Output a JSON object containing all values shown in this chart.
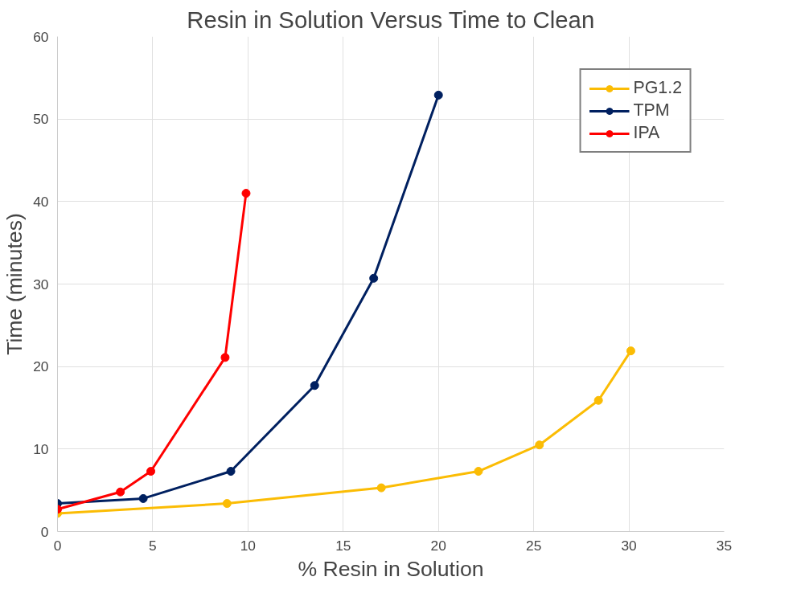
{
  "chart_data": {
    "type": "line",
    "title": "Resin in Solution Versus Time to Clean",
    "xlabel": "% Resin in Solution",
    "ylabel": "Time (minutes)",
    "xlim": [
      0,
      35
    ],
    "xticks": [
      0,
      5,
      10,
      15,
      20,
      25,
      30,
      35
    ],
    "ylim": [
      0,
      60
    ],
    "yticks": [
      0,
      10,
      20,
      30,
      40,
      50,
      60
    ],
    "grid": true,
    "legend": "top right",
    "marker": "circle",
    "line_style": "solid",
    "series": [
      {
        "name": "PG1.2",
        "color": "#fbbc04",
        "x": [
          0,
          8.9,
          17.0,
          22.1,
          25.3,
          28.4,
          30.1
        ],
        "values": [
          2.2,
          3.4,
          5.3,
          7.3,
          10.5,
          15.9,
          21.9
        ]
      },
      {
        "name": "TPM",
        "color": "#002060",
        "x": [
          0,
          4.5,
          9.1,
          13.5,
          16.6,
          20.0
        ],
        "values": [
          3.4,
          4.0,
          7.3,
          17.7,
          30.7,
          52.9
        ]
      },
      {
        "name": "IPA",
        "color": "#ff0000",
        "x": [
          0,
          3.3,
          4.9,
          8.8,
          9.9
        ],
        "values": [
          2.7,
          4.8,
          7.3,
          21.1,
          41.0
        ]
      }
    ]
  }
}
